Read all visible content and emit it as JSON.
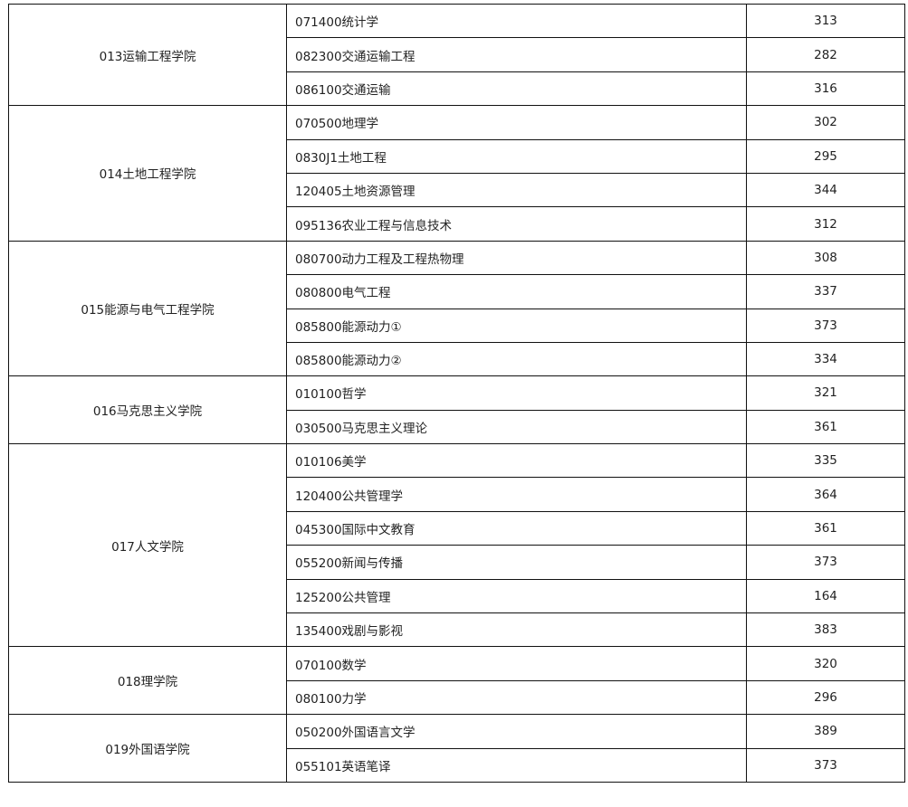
{
  "table": {
    "groups": [
      {
        "college": "013运输工程学院",
        "rows": [
          [
            "071400统计学",
            "313"
          ],
          [
            "082300交通运输工程",
            "282"
          ],
          [
            "086100交通运输",
            "316"
          ]
        ]
      },
      {
        "college": "014土地工程学院",
        "rows": [
          [
            "070500地理学",
            "302"
          ],
          [
            "0830J1土地工程",
            "295"
          ],
          [
            "120405土地资源管理",
            "344"
          ],
          [
            "095136农业工程与信息技术",
            "312"
          ]
        ]
      },
      {
        "college": "015能源与电气工程学院",
        "rows": [
          [
            "080700动力工程及工程热物理",
            "308"
          ],
          [
            "080800电气工程",
            "337"
          ],
          [
            "085800能源动力①",
            "373"
          ],
          [
            "085800能源动力②",
            "334"
          ]
        ]
      },
      {
        "college": "016马克思主义学院",
        "rows": [
          [
            "010100哲学",
            "321"
          ],
          [
            "030500马克思主义理论",
            "361"
          ]
        ]
      },
      {
        "college": "017人文学院",
        "rows": [
          [
            "010106美学",
            "335"
          ],
          [
            "120400公共管理学",
            "364"
          ],
          [
            "045300国际中文教育",
            "361"
          ],
          [
            "055200新闻与传播",
            "373"
          ],
          [
            "125200公共管理",
            "164"
          ],
          [
            "135400戏剧与影视",
            "383"
          ]
        ]
      },
      {
        "college": "018理学院",
        "rows": [
          [
            "070100数学",
            "320"
          ],
          [
            "080100力学",
            "296"
          ]
        ]
      },
      {
        "college": "019外国语学院",
        "rows": [
          [
            "050200外国语言文学",
            "389"
          ],
          [
            "055101英语笔译",
            "373"
          ]
        ]
      }
    ]
  }
}
